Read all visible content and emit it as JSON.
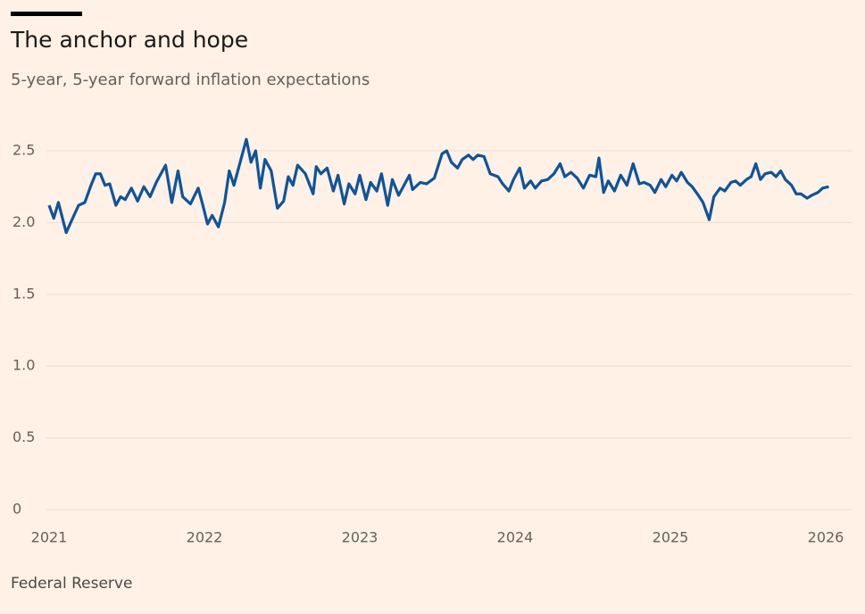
{
  "chart_data": {
    "type": "line",
    "title": "The anchor and hope",
    "subtitle": "5-year, 5-year forward inflation expectations",
    "source": "Federal Reserve",
    "x": [
      2021.0,
      2021.03,
      2021.06,
      2021.11,
      2021.16,
      2021.19,
      2021.23,
      2021.27,
      2021.3,
      2021.33,
      2021.36,
      2021.39,
      2021.43,
      2021.46,
      2021.49,
      2021.53,
      2021.57,
      2021.61,
      2021.65,
      2021.69,
      2021.75,
      2021.79,
      2021.83,
      2021.86,
      2021.91,
      2021.96,
      2021.99,
      2022.02,
      2022.05,
      2022.09,
      2022.13,
      2022.16,
      2022.19,
      2022.22,
      2022.27,
      2022.3,
      2022.33,
      2022.36,
      2022.39,
      2022.43,
      2022.47,
      2022.51,
      2022.54,
      2022.57,
      2022.6,
      2022.65,
      2022.7,
      2022.72,
      2022.75,
      2022.79,
      2022.83,
      2022.86,
      2022.9,
      2022.93,
      2022.97,
      2023.0,
      2023.04,
      2023.07,
      2023.11,
      2023.14,
      2023.18,
      2023.21,
      2023.25,
      2023.29,
      2023.32,
      2023.34,
      2023.39,
      2023.43,
      2023.48,
      2023.53,
      2023.56,
      2023.59,
      2023.63,
      2023.66,
      2023.7,
      2023.73,
      2023.76,
      2023.8,
      2023.84,
      2023.89,
      2023.92,
      2023.96,
      2023.99,
      2024.03,
      2024.06,
      2024.1,
      2024.13,
      2024.17,
      2024.21,
      2024.25,
      2024.29,
      2024.32,
      2024.36,
      2024.4,
      2024.44,
      2024.48,
      2024.52,
      2024.54,
      2024.57,
      2024.6,
      2024.64,
      2024.68,
      2024.72,
      2024.76,
      2024.8,
      2024.83,
      2024.87,
      2024.9,
      2024.94,
      2024.97,
      2025.01,
      2025.04,
      2025.07,
      2025.11,
      2025.14,
      2025.18,
      2025.21,
      2025.25,
      2025.28,
      2025.32,
      2025.35,
      2025.39,
      2025.42,
      2025.45,
      2025.49,
      2025.52,
      2025.55,
      2025.58,
      2025.61,
      2025.65,
      2025.68,
      2025.71,
      2025.74,
      2025.78,
      2025.81,
      2025.84,
      2025.88,
      2025.91,
      2025.95,
      2025.98,
      2026.02
    ],
    "series": [
      {
        "color": "#0f5499",
        "values": [
          2.12,
          2.03,
          2.14,
          1.93,
          2.05,
          2.12,
          2.14,
          2.26,
          2.34,
          2.34,
          2.26,
          2.27,
          2.12,
          2.18,
          2.16,
          2.24,
          2.15,
          2.25,
          2.18,
          2.28,
          2.4,
          2.14,
          2.36,
          2.18,
          2.13,
          2.24,
          2.12,
          1.99,
          2.05,
          1.97,
          2.14,
          2.36,
          2.26,
          2.38,
          2.58,
          2.42,
          2.5,
          2.24,
          2.44,
          2.36,
          2.1,
          2.15,
          2.32,
          2.26,
          2.4,
          2.34,
          2.2,
          2.39,
          2.34,
          2.38,
          2.22,
          2.33,
          2.13,
          2.27,
          2.2,
          2.33,
          2.16,
          2.28,
          2.22,
          2.34,
          2.12,
          2.3,
          2.19,
          2.27,
          2.33,
          2.23,
          2.28,
          2.27,
          2.31,
          2.48,
          2.5,
          2.42,
          2.38,
          2.44,
          2.47,
          2.44,
          2.47,
          2.46,
          2.34,
          2.32,
          2.27,
          2.22,
          2.3,
          2.38,
          2.24,
          2.29,
          2.24,
          2.29,
          2.3,
          2.34,
          2.41,
          2.32,
          2.35,
          2.31,
          2.24,
          2.33,
          2.32,
          2.45,
          2.21,
          2.29,
          2.22,
          2.33,
          2.26,
          2.41,
          2.27,
          2.28,
          2.26,
          2.21,
          2.3,
          2.25,
          2.33,
          2.29,
          2.35,
          2.28,
          2.25,
          2.19,
          2.14,
          2.02,
          2.18,
          2.24,
          2.22,
          2.28,
          2.29,
          2.26,
          2.3,
          2.32,
          2.41,
          2.3,
          2.34,
          2.35,
          2.32,
          2.36,
          2.3,
          2.26,
          2.2,
          2.2,
          2.17,
          2.19,
          2.21,
          2.24,
          2.25
        ]
      }
    ],
    "xlim": [
      2021,
      2026
    ],
    "xticks": [
      2021,
      2022,
      2023,
      2024,
      2025,
      2026
    ],
    "ylim": [
      0,
      2.5
    ],
    "yticks": [
      0,
      0.5,
      {
        "value": 1,
        "label": "1.0"
      },
      1.5,
      {
        "value": 2,
        "label": "2.0"
      },
      2.5
    ],
    "grid": true
  }
}
